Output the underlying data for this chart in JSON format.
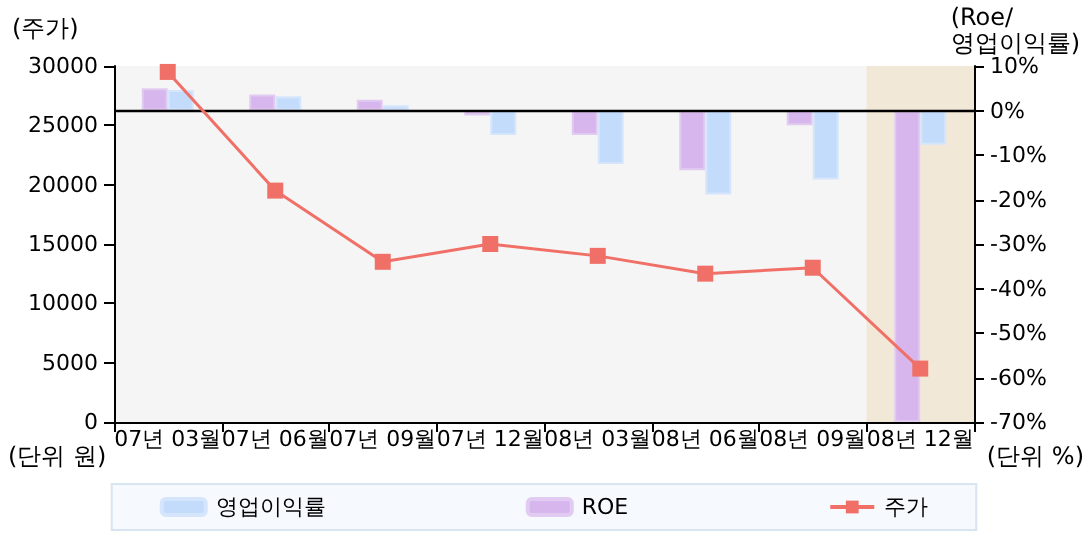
{
  "chart_data": {
    "type": "bar",
    "categories": [
      "07년 03월",
      "07년 06월",
      "07년 09월",
      "07년 12월",
      "08년 03월",
      "08년 06월",
      "08년 09월",
      "08년 12월"
    ],
    "series": [
      {
        "name": "영업이익률",
        "color": "#c4dcfc",
        "axis": "y2",
        "values": [
          4.6,
          3.2,
          1.2,
          -5.5,
          -12,
          -18.9,
          -15.5,
          -7.7
        ]
      },
      {
        "name": "ROE",
        "color": "#d6b6ec",
        "axis": "y2",
        "values": [
          5,
          3.6,
          2.4,
          -1.1,
          -5.5,
          -13.4,
          -3.3,
          -70
        ]
      },
      {
        "name": "주가",
        "type": "line",
        "color": "#f07068",
        "marker": "square",
        "values": [
          29500,
          19500,
          13500,
          15000,
          14000,
          12500,
          13000,
          4500
        ]
      }
    ],
    "ylabel": "(주가)",
    "y2label": "(Roe/\n영업이익률)",
    "ylim": [
      0,
      30000
    ],
    "yticks": [
      0,
      5000,
      10000,
      15000,
      20000,
      25000,
      30000
    ],
    "y2lim": [
      -70,
      10
    ],
    "y2ticks": [
      {
        "value": -70,
        "label": "-70%"
      },
      {
        "value": -60,
        "label": "-60%"
      },
      {
        "value": -50,
        "label": "-50%"
      },
      {
        "value": -40,
        "label": "-40%"
      },
      {
        "value": -30,
        "label": "-30%"
      },
      {
        "value": -20,
        "label": "-20%"
      },
      {
        "value": -10,
        "label": "-10%"
      },
      {
        "value": 0,
        "label": "0%"
      },
      {
        "value": 10,
        "label": "10%"
      }
    ],
    "ref_lines": [
      {
        "axis": "y2",
        "value": 0,
        "color": "#000000"
      }
    ],
    "bands": [
      {
        "axis": "x",
        "from": "08년 12월",
        "to": "08년 12월",
        "color": "#f2e8d8"
      }
    ],
    "annotations": [
      "(단위 원)",
      "(단위 %)"
    ],
    "grid": false,
    "legend": "bottom"
  }
}
